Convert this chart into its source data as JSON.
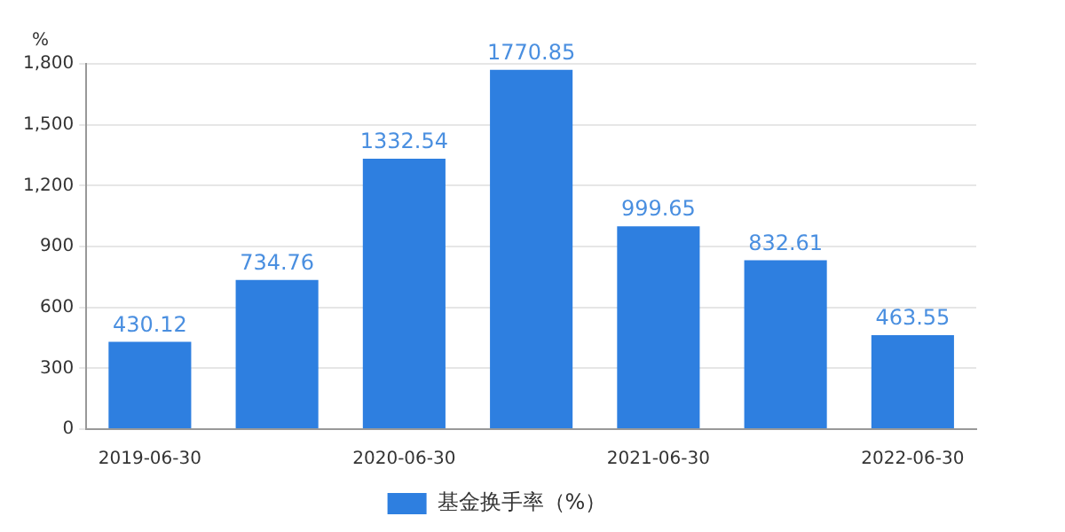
{
  "chart_data": {
    "type": "bar",
    "ylabel": "%",
    "categories": [
      "2019-06-30",
      null,
      "2020-06-30",
      null,
      "2021-06-30",
      null,
      "2022-06-30"
    ],
    "series": [
      {
        "name": "基金换手率（%）",
        "color": "#2e7fe0",
        "values": [
          430.12,
          734.76,
          1332.54,
          1770.85,
          999.65,
          832.61,
          463.55
        ]
      }
    ],
    "ylim": [
      0,
      1800
    ],
    "yticks": [
      0,
      300,
      600,
      900,
      {
        "value": 1200,
        "label": "1,200"
      },
      {
        "value": 1500,
        "label": "1,500"
      },
      {
        "value": 1800,
        "label": "1,800"
      }
    ],
    "grid": "y",
    "legend": "bottom",
    "data_labels": true
  }
}
